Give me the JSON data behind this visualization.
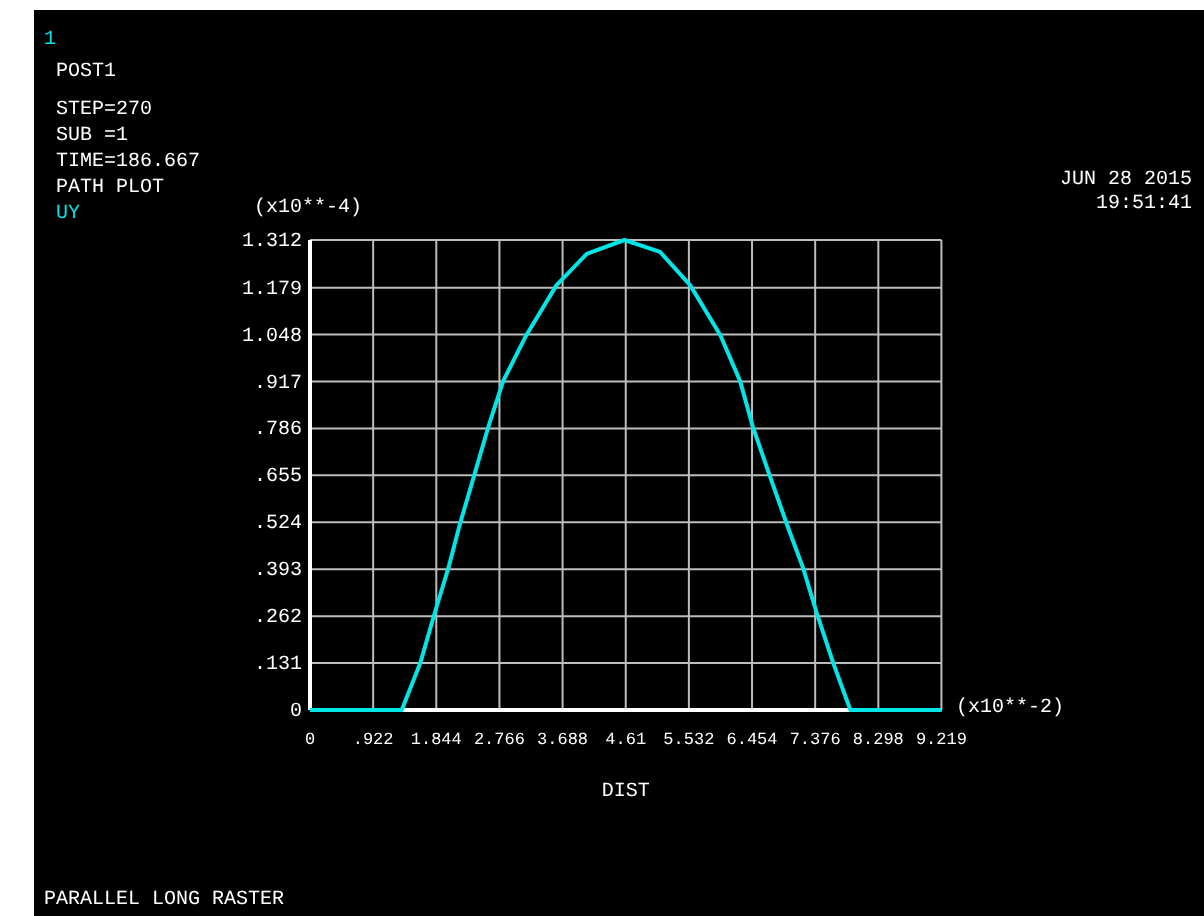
{
  "chart_data": {
    "type": "line",
    "xlabel": "DIST",
    "ylabel": "(x10**-4)",
    "annotations": [
      "1",
      "POST1",
      "STEP=270",
      "SUB =1",
      "TIME=186.667",
      "PATH PLOT",
      "JUN 28 2015",
      "19:51:41",
      "PARALLEL LONG RASTER",
      "(x10**-2)"
    ],
    "xlim": [
      0,
      9.219
    ],
    "ylim": [
      0,
      1.312
    ],
    "xticks": [
      0,
      {
        "value": 0.922,
        "label": ".922"
      },
      1.844,
      2.766,
      3.688,
      4.61,
      5.532,
      6.454,
      7.376,
      8.298,
      9.219
    ],
    "yticks": [
      0,
      {
        "value": 0.131,
        "label": ".131"
      },
      {
        "value": 0.262,
        "label": ".262"
      },
      {
        "value": 0.393,
        "label": ".393"
      },
      {
        "value": 0.524,
        "label": ".524"
      },
      {
        "value": 0.655,
        "label": ".655"
      },
      {
        "value": 0.786,
        "label": ".786"
      },
      {
        "value": 0.917,
        "label": ".917"
      },
      1.048,
      1.179,
      1.312
    ],
    "grid": true,
    "legend": "top left",
    "marker": "none",
    "line_style": "solid",
    "series": [
      {
        "name": "UY",
        "color": "#00e5e5",
        "x": [
          0,
          1.34,
          1.61,
          1.82,
          2.02,
          2.19,
          2.39,
          2.6,
          2.82,
          3.16,
          3.6,
          4.04,
          4.59,
          5.11,
          5.55,
          5.99,
          6.28,
          6.47,
          6.72,
          6.96,
          7.2,
          7.4,
          7.64,
          7.89,
          9.219
        ],
        "values": [
          0,
          0,
          0.131,
          0.27,
          0.396,
          0.52,
          0.65,
          0.788,
          0.918,
          1.047,
          1.186,
          1.273,
          1.312,
          1.279,
          1.186,
          1.047,
          0.918,
          0.788,
          0.65,
          0.52,
          0.396,
          0.27,
          0.131,
          0,
          0
        ]
      }
    ]
  }
}
